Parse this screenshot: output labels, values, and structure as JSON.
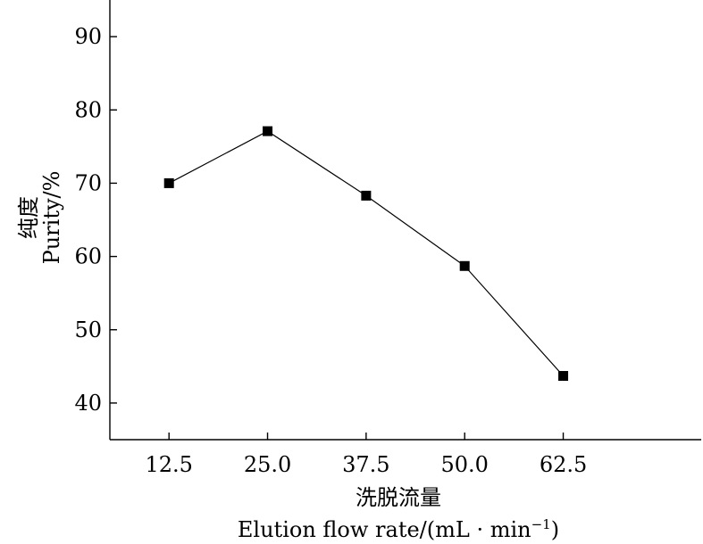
{
  "chart_data": {
    "type": "line",
    "x": [
      12.5,
      25.0,
      37.5,
      50.0,
      62.5
    ],
    "x_tick_labels": [
      "12.5",
      "25.0",
      "37.5",
      "50.0",
      "62.5"
    ],
    "y_ticks": [
      40,
      50,
      60,
      70,
      80,
      90
    ],
    "y_tick_labels": [
      "40",
      "50",
      "60",
      "70",
      "80",
      "90"
    ],
    "xlim": [
      5,
      80
    ],
    "ylim": [
      35,
      95
    ],
    "series": [
      {
        "values": [
          70.0,
          77.1,
          68.3,
          58.7,
          43.7
        ]
      }
    ],
    "xlabel_cn": "洗脱流量",
    "xlabel_en": "Elution flow rate/(mL · min",
    "xlabel_en_sup": "−1",
    "xlabel_en_close": ")",
    "ylabel_cn": "纯度",
    "ylabel_en": "Purity/%",
    "grid": false,
    "legend": "none",
    "marker": "square",
    "line_color": "#000000"
  }
}
